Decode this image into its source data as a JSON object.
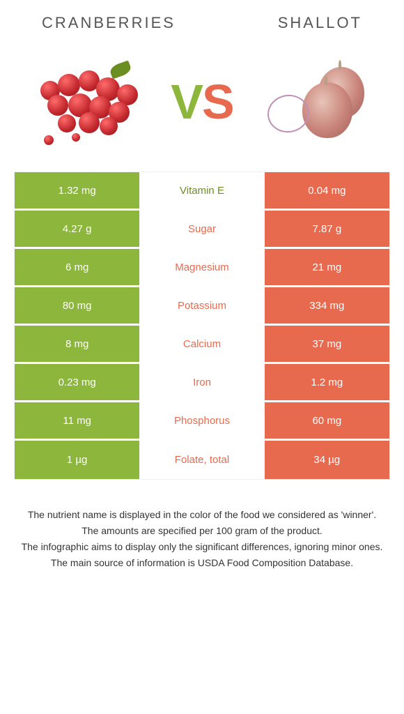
{
  "left_title": "CRANBERRIES",
  "right_title": "SHALLOT",
  "vs_v": "V",
  "vs_s": "S",
  "colors": {
    "left": "#8cb63c",
    "right": "#e86a4e",
    "left_dark": "#6b8e23"
  },
  "rows": [
    {
      "left": "1.32 mg",
      "label": "Vitamin E",
      "right": "0.04 mg",
      "winner": "left"
    },
    {
      "left": "4.27 g",
      "label": "Sugar",
      "right": "7.87 g",
      "winner": "right"
    },
    {
      "left": "6 mg",
      "label": "Magnesium",
      "right": "21 mg",
      "winner": "right"
    },
    {
      "left": "80 mg",
      "label": "Potassium",
      "right": "334 mg",
      "winner": "right"
    },
    {
      "left": "8 mg",
      "label": "Calcium",
      "right": "37 mg",
      "winner": "right"
    },
    {
      "left": "0.23 mg",
      "label": "Iron",
      "right": "1.2 mg",
      "winner": "right"
    },
    {
      "left": "11 mg",
      "label": "Phosphorus",
      "right": "60 mg",
      "winner": "right"
    },
    {
      "left": "1 µg",
      "label": "Folate, total",
      "right": "34 µg",
      "winner": "right"
    }
  ],
  "footer": [
    "The nutrient name is displayed in the color of the food we considered as 'winner'.",
    "The amounts are specified per 100 gram of the product.",
    "The infographic aims to display only the significant differences, ignoring minor ones.",
    "The main source of information is USDA Food Composition Database."
  ]
}
